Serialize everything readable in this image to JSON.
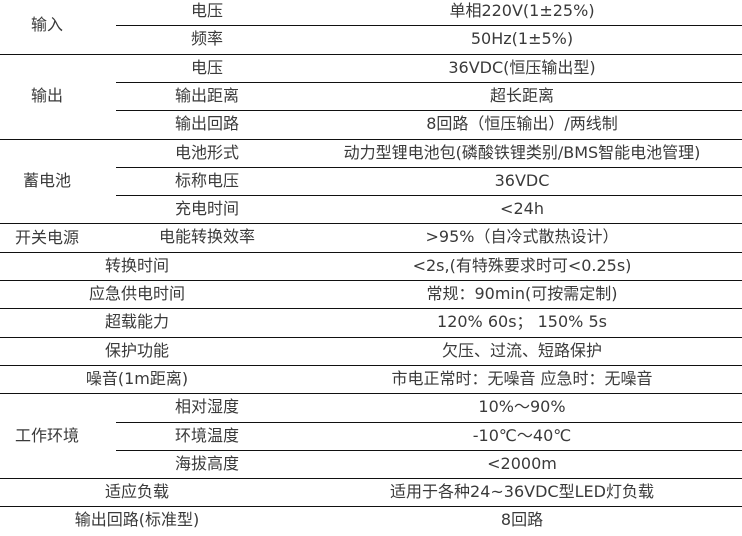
{
  "sections": [
    {
      "category": "输入",
      "items": [
        {
          "label": "电压",
          "value": "单相220V(1±25%)"
        },
        {
          "label": "频率",
          "value": "50Hz(1±5%)"
        }
      ]
    },
    {
      "category": "输出",
      "items": [
        {
          "label": "电压",
          "value": "36VDC(恒压输出型)"
        },
        {
          "label": "输出距离",
          "value": "超长距离"
        },
        {
          "label": "输出回路",
          "value": "8回路（恒压输出）/两线制"
        }
      ]
    },
    {
      "category": "蓄电池",
      "items": [
        {
          "label": "电池形式",
          "value": "动力型锂电池包(磷酸铁锂类别/BMS智能电池管理)"
        },
        {
          "label": "标称电压",
          "value": "36VDC"
        },
        {
          "label": "充电时间",
          "value": "<24h"
        }
      ]
    },
    {
      "category": "开关电源",
      "items": [
        {
          "label": "电能转换效率",
          "value": ">95%（自冷式散热设计）"
        }
      ]
    },
    {
      "category": null,
      "items": [
        {
          "label": "转换时间",
          "value": "<2s,(有特殊要求时可<0.25s)"
        }
      ]
    },
    {
      "category": null,
      "items": [
        {
          "label": "应急供电时间",
          "value": "常规：90min(可按需定制)"
        }
      ]
    },
    {
      "category": null,
      "items": [
        {
          "label": "超载能力",
          "value": "120% 60s；  150% 5s"
        }
      ]
    },
    {
      "category": null,
      "items": [
        {
          "label": "保护功能",
          "value": "欠压、过流、短路保护"
        }
      ]
    },
    {
      "category": null,
      "items": [
        {
          "label": "噪音(1m距离)",
          "value": "市电正常时：无噪音  应急时：无噪音"
        }
      ]
    },
    {
      "category": "工作环境",
      "items": [
        {
          "label": "相对湿度",
          "value": "10%～90%"
        },
        {
          "label": "环境温度",
          "value": "-10℃～40℃"
        },
        {
          "label": "海拔高度",
          "value": "<2000m"
        }
      ]
    },
    {
      "category": null,
      "items": [
        {
          "label": "适应负载",
          "value": "适用于各种24~36VDC型LED灯负载"
        }
      ]
    },
    {
      "category": null,
      "items": [
        {
          "label": "输出回路(标准型)",
          "value": "8回路"
        }
      ]
    }
  ]
}
